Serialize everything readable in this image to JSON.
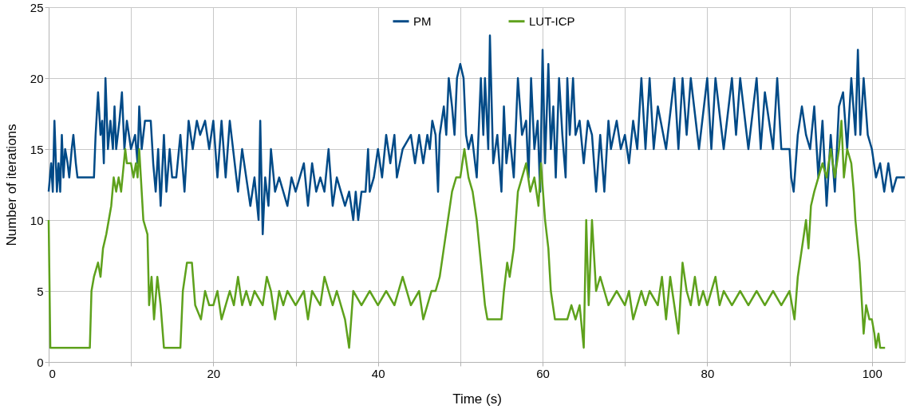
{
  "chart_data": {
    "type": "line",
    "xlabel": "Time (s)",
    "ylabel": "Number of iterations",
    "xlim": [
      0,
      104
    ],
    "xticks": [
      0,
      {
        "value": 10,
        "label": null
      },
      20,
      {
        "value": 30,
        "label": null
      },
      40,
      {
        "value": 50,
        "label": null
      },
      60,
      {
        "value": 70,
        "label": null
      },
      80,
      {
        "value": 90,
        "label": null
      },
      100
    ],
    "ylim": [
      0,
      25
    ],
    "yticks": [
      0,
      5,
      10,
      15,
      20,
      25
    ],
    "grid": true,
    "legend": "top",
    "marker": "none",
    "line_style": "solid",
    "series": [
      {
        "name": "PM",
        "color": "#004a87",
        "x": [
          0,
          0.3,
          0.5,
          0.7,
          1,
          1.2,
          1.4,
          1.6,
          1.8,
          2,
          2.3,
          2.5,
          2.8,
          3,
          3.3,
          3.5,
          5.5,
          5.7,
          6,
          6.3,
          6.5,
          6.7,
          6.9,
          7.2,
          7.5,
          7.8,
          8,
          8.2,
          8.6,
          8.9,
          9.2,
          9.5,
          10,
          10.5,
          10.8,
          11,
          11.3,
          11.7,
          12.4,
          12.7,
          13,
          13.3,
          13.6,
          14,
          14.3,
          14.7,
          15,
          15.5,
          16,
          16.5,
          17,
          17.5,
          18,
          18.4,
          19,
          19.5,
          20,
          20.5,
          21,
          21.5,
          22,
          23,
          23.5,
          24,
          24.5,
          25,
          25.5,
          25.7,
          26,
          26.3,
          26.7,
          27,
          27.5,
          28,
          29,
          29.5,
          30,
          31,
          31.5,
          32,
          32.5,
          33,
          33.5,
          34,
          34.5,
          35,
          36,
          36.5,
          37,
          37.3,
          37.6,
          38,
          38.5,
          38.8,
          39,
          39.5,
          40,
          40.5,
          41,
          41.5,
          42,
          42.3,
          43,
          44,
          44.5,
          45,
          45.5,
          46,
          46.3,
          46.6,
          47,
          47.3,
          47.5,
          48,
          48.3,
          48.6,
          49,
          49.3,
          49.6,
          50,
          50.4,
          50.7,
          51,
          51.4,
          52,
          52.5,
          52.8,
          53,
          53.4,
          53.6,
          54,
          54.5,
          55,
          55.3,
          55.6,
          56,
          56.5,
          57,
          57.5,
          58,
          58.3,
          58.6,
          59,
          59.4,
          59.7,
          60,
          60.3,
          60.7,
          61,
          61.3,
          61.6,
          62,
          62.4,
          62.8,
          63,
          63.3,
          63.7,
          64,
          64.5,
          65,
          65.5,
          66,
          66.5,
          67,
          67.5,
          68,
          68.3,
          69,
          69.5,
          70,
          70.5,
          71,
          71.5,
          72,
          72.5,
          73,
          73.5,
          74,
          75,
          76,
          76.5,
          77,
          77.5,
          78,
          79,
          80,
          80.5,
          81,
          82,
          83,
          83.5,
          84,
          85,
          86,
          86.5,
          87,
          88,
          88.5,
          89,
          90,
          90.2,
          90.5,
          91,
          91.5,
          92,
          92.5,
          93,
          93.5,
          94,
          94.5,
          95,
          95.5,
          96,
          96.5,
          97,
          97.5,
          98,
          98.3,
          98.6,
          99,
          99.5,
          100,
          100.5,
          101,
          101.5,
          102,
          102.5,
          103,
          104
        ],
        "values": [
          12,
          14,
          12,
          17,
          12,
          14,
          12,
          16,
          13,
          15,
          14,
          13,
          15,
          16,
          14,
          13,
          13,
          16,
          19,
          16,
          17,
          14,
          20,
          15,
          17,
          15,
          18,
          15,
          17,
          19,
          15,
          17,
          15,
          16,
          14,
          18,
          15,
          17,
          17,
          14,
          12,
          15,
          11,
          16,
          12,
          15,
          13,
          13,
          16,
          12,
          17,
          15,
          17,
          16,
          17,
          15,
          17,
          13,
          17,
          13,
          17,
          12,
          15,
          13,
          11,
          13,
          10,
          17,
          9,
          13,
          11,
          15,
          12,
          13,
          11,
          13,
          12,
          14,
          11,
          14,
          12,
          13,
          12,
          15,
          11,
          13,
          11,
          12,
          10,
          12,
          10,
          12,
          12,
          15,
          12,
          13,
          15,
          13,
          16,
          14,
          16,
          13,
          15,
          16,
          14,
          16,
          14,
          16,
          15,
          17,
          16,
          12,
          16,
          18,
          16,
          20,
          18,
          16,
          20,
          21,
          20,
          16,
          15,
          16,
          13,
          20,
          16,
          20,
          15,
          23,
          14,
          16,
          12,
          18,
          14,
          16,
          13,
          20,
          16,
          17,
          13,
          20,
          15,
          17,
          12,
          22,
          14,
          21,
          15,
          18,
          13,
          20,
          16,
          13,
          20,
          16,
          20,
          16,
          17,
          14,
          17,
          16,
          12,
          16,
          12,
          17,
          15,
          17,
          15,
          16,
          14,
          17,
          15,
          20,
          15,
          20,
          15,
          18,
          15,
          20,
          15,
          20,
          16,
          20,
          15,
          20,
          15,
          20,
          15,
          20,
          16,
          20,
          15,
          20,
          15,
          19,
          15,
          20,
          15,
          15,
          13,
          12,
          16,
          18,
          16,
          15,
          18,
          13,
          17,
          11,
          16,
          12,
          18,
          19,
          15,
          20,
          16,
          22,
          16,
          20,
          16,
          15,
          13,
          14,
          12,
          14,
          12,
          13,
          13
        ]
      },
      {
        "name": "LUT-ICP",
        "color": "#5ea11c",
        "x": [
          0,
          0.2,
          5,
          5.2,
          5.5,
          6,
          6.3,
          6.6,
          7,
          7.3,
          7.6,
          7.9,
          8.2,
          8.5,
          8.8,
          9.3,
          9.5,
          10,
          10.3,
          10.6,
          10.8,
          11,
          11.2,
          11.5,
          12,
          12.2,
          12.5,
          12.8,
          13.2,
          13.6,
          14,
          16,
          16.3,
          16.8,
          17.4,
          17.8,
          18.5,
          19,
          19.5,
          20,
          20.5,
          21,
          21.5,
          22,
          22.5,
          23,
          23.5,
          24,
          24.5,
          25,
          26,
          26.5,
          27,
          27.5,
          28,
          28.5,
          29,
          30,
          31,
          31.5,
          32,
          33,
          33.5,
          34,
          34.5,
          35,
          36,
          36.5,
          37,
          38,
          39,
          40,
          41,
          42,
          43,
          44,
          45,
          45.5,
          46,
          46.5,
          47,
          47.5,
          48,
          48.5,
          49,
          49.5,
          50,
          50.5,
          51,
          51.5,
          52,
          52.5,
          53,
          53.3,
          55,
          55.3,
          55.7,
          56,
          56.5,
          57,
          57.5,
          58,
          58.5,
          59,
          59.5,
          59.8,
          60.3,
          60.7,
          61,
          61.5,
          63,
          63.5,
          64,
          64.5,
          65,
          65.3,
          65.6,
          66,
          66.5,
          67,
          67.5,
          68,
          69,
          70,
          70.5,
          71,
          72,
          72.5,
          73,
          74,
          74.5,
          75,
          75.5,
          76,
          76.5,
          77,
          77.5,
          78,
          78.5,
          79,
          79.5,
          80,
          81,
          81.5,
          82,
          83,
          84,
          85,
          86,
          87,
          88,
          89,
          90,
          90.3,
          90.6,
          91,
          91.5,
          92,
          92.3,
          92.6,
          93,
          93.5,
          94,
          94.5,
          95,
          95.5,
          96,
          96.3,
          96.6,
          97,
          97.5,
          97.8,
          98,
          98.5,
          99,
          99.3,
          99.7,
          100,
          100.3,
          100.5,
          100.8,
          101,
          101.6
        ],
        "values": [
          10,
          1,
          1,
          5,
          6,
          7,
          6,
          8,
          9,
          10,
          11,
          13,
          12,
          13,
          12,
          15,
          14,
          14,
          13,
          14,
          13,
          15,
          13,
          10,
          9,
          4,
          6,
          3,
          6,
          4,
          1,
          1,
          5,
          7,
          7,
          4,
          3,
          5,
          4,
          4,
          5,
          3,
          4,
          5,
          4,
          6,
          4,
          5,
          4,
          5,
          4,
          6,
          5,
          3,
          5,
          4,
          5,
          4,
          5,
          3,
          5,
          4,
          6,
          5,
          4,
          5,
          3,
          1,
          5,
          4,
          5,
          4,
          5,
          4,
          6,
          4,
          5,
          3,
          4,
          5,
          5,
          6,
          8,
          10,
          12,
          13,
          13,
          15,
          13,
          12,
          10,
          7,
          4,
          3,
          3,
          5,
          7,
          6,
          8,
          12,
          13,
          14,
          12,
          13,
          11,
          14,
          10,
          8,
          5,
          3,
          3,
          4,
          3,
          4,
          1,
          10,
          4,
          10,
          5,
          6,
          5,
          4,
          5,
          4,
          5,
          3,
          5,
          4,
          5,
          4,
          6,
          3,
          6,
          4,
          2,
          7,
          5,
          4,
          6,
          4,
          5,
          4,
          6,
          4,
          5,
          4,
          5,
          4,
          5,
          4,
          5,
          4,
          5,
          4,
          3,
          6,
          8,
          10,
          8,
          11,
          12,
          13,
          14,
          13,
          15,
          13,
          15,
          17,
          13,
          15,
          14,
          12,
          10,
          7,
          2,
          4,
          3,
          3,
          2,
          1,
          2,
          1,
          1
        ]
      }
    ]
  }
}
